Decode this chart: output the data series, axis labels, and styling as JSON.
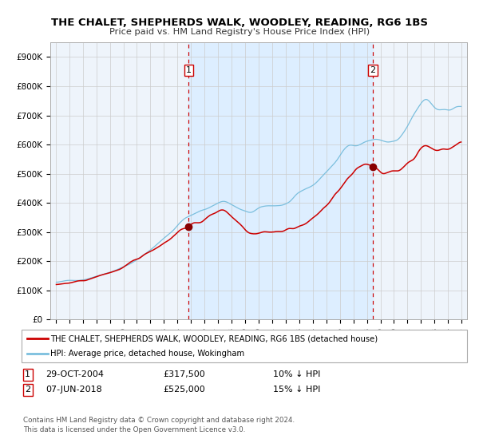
{
  "title": "THE CHALET, SHEPHERDS WALK, WOODLEY, READING, RG6 1BS",
  "subtitle": "Price paid vs. HM Land Registry's House Price Index (HPI)",
  "legend_line1": "THE CHALET, SHEPHERDS WALK, WOODLEY, READING, RG6 1BS (detached house)",
  "legend_line2": "HPI: Average price, detached house, Wokingham",
  "annotation1_label": "1",
  "annotation1_date": "29-OCT-2004",
  "annotation1_price": "£317,500",
  "annotation1_hpi": "10% ↓ HPI",
  "annotation2_label": "2",
  "annotation2_date": "07-JUN-2018",
  "annotation2_price": "£525,000",
  "annotation2_hpi": "15% ↓ HPI",
  "vline1_year": 2004.83,
  "vline2_year": 2018.44,
  "dot1_year": 2004.83,
  "dot1_value": 317500,
  "dot2_year": 2018.44,
  "dot2_value": 525000,
  "hpi_color": "#7bbfde",
  "price_color": "#cc0000",
  "dot_color": "#880000",
  "vline_color": "#cc0000",
  "shading_color": "#ddeeff",
  "background_color": "#eef4fb",
  "grid_color": "#cccccc",
  "ylim": [
    0,
    950000
  ],
  "yticks": [
    0,
    100000,
    200000,
    300000,
    400000,
    500000,
    600000,
    700000,
    800000,
    900000
  ],
  "ytick_labels": [
    "£0",
    "£100K",
    "£200K",
    "£300K",
    "£400K",
    "£500K",
    "£600K",
    "£700K",
    "£800K",
    "£900K"
  ],
  "xlim_start": 1994.6,
  "xlim_end": 2025.4,
  "footer_line1": "Contains HM Land Registry data © Crown copyright and database right 2024.",
  "footer_line2": "This data is licensed under the Open Government Licence v3.0."
}
